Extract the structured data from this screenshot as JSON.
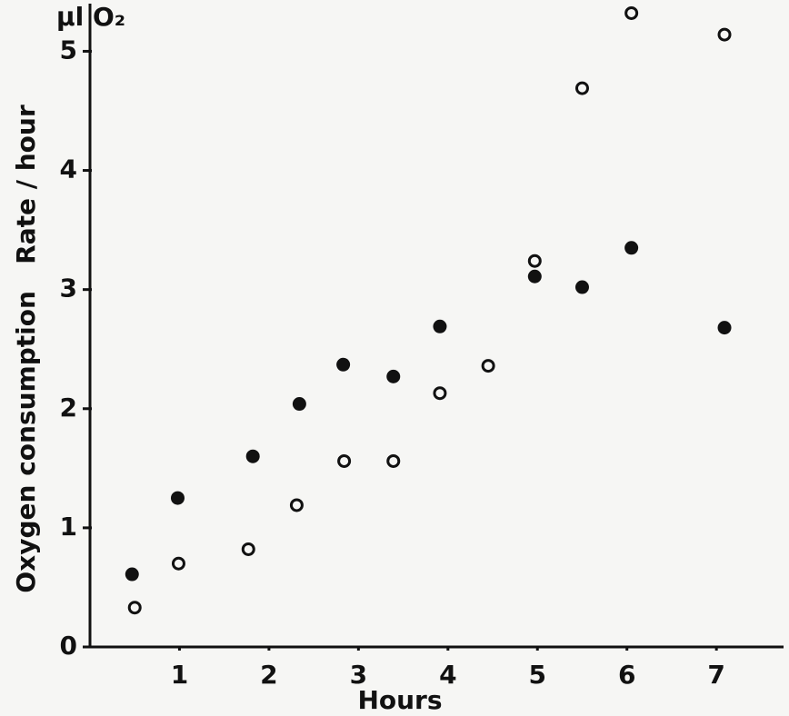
{
  "chart_data": {
    "type": "scatter",
    "y_unit_label": "μl O₂",
    "y_label": "Oxygen consumption   Rate / hour",
    "x_label": "Hours",
    "xlim": [
      0,
      7.75
    ],
    "ylim": [
      0,
      5.4
    ],
    "xticks": [
      1,
      2,
      3,
      4,
      5,
      6,
      7
    ],
    "yticks": [
      0,
      1,
      2,
      3,
      4,
      5
    ],
    "series": [
      {
        "marker": "filled",
        "color": "#111111",
        "x": [
          0.47,
          0.98,
          1.82,
          2.34,
          2.83,
          3.39,
          3.91,
          4.97,
          5.5,
          6.05,
          7.09
        ],
        "values": [
          0.61,
          1.25,
          1.6,
          2.04,
          2.37,
          2.27,
          2.69,
          3.11,
          3.02,
          3.35,
          2.68
        ]
      },
      {
        "marker": "open",
        "color": "#111111",
        "x": [
          0.5,
          0.99,
          1.77,
          2.31,
          2.84,
          3.39,
          3.91,
          4.45,
          4.97,
          5.5,
          6.05,
          7.09
        ],
        "values": [
          0.33,
          0.7,
          0.82,
          1.19,
          1.56,
          1.56,
          2.13,
          2.36,
          3.24,
          4.69,
          5.32,
          5.14
        ]
      }
    ]
  }
}
